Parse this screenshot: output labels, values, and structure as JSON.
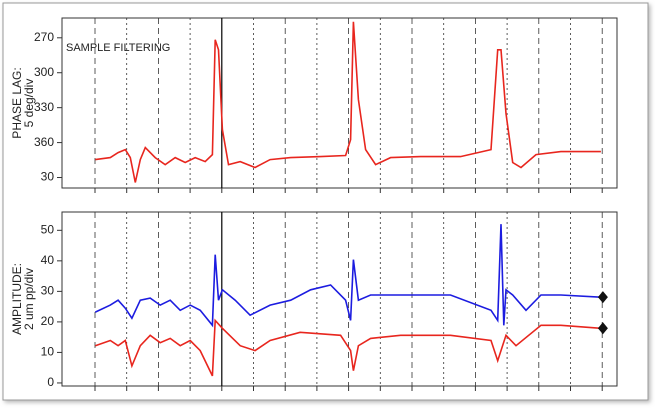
{
  "chart_data": [
    {
      "type": "line",
      "ylabel": [
        "PHASE LAG:",
        "5 deg/div"
      ],
      "annotation": "SAMPLE FILTERING",
      "xlim": [
        0,
        100
      ],
      "ylim": [
        253,
        399
      ],
      "y_inverted": true,
      "yticks": [
        270,
        300,
        330,
        360,
        {
          "value": 390,
          "label": "30"
        }
      ],
      "series": [
        {
          "color": "#e8261e",
          "x": [
            6.0,
            8.7,
            10.1,
            11.4,
            12.3,
            13.2,
            14.1,
            15.0,
            16.8,
            18.6,
            20.4,
            22.2,
            24.0,
            25.8,
            27.1,
            27.6,
            28.2,
            28.9,
            30.0,
            32.1,
            34.8,
            37.5,
            41.2,
            46.6,
            51.1,
            52.0,
            52.5,
            53.4,
            54.7,
            56.5,
            59.2,
            64.6,
            71.8,
            77.3,
            78.5,
            79.1,
            80.0,
            81.2,
            82.7,
            85.4,
            89.9,
            97.1
          ],
          "values": [
            374.6,
            372.9,
            368.6,
            366,
            372.9,
            394.3,
            374.6,
            364.3,
            372.9,
            378.9,
            372.9,
            377.1,
            372.9,
            376.3,
            370.3,
            271.7,
            280.3,
            348.9,
            378.9,
            376.3,
            381.4,
            374.6,
            372.9,
            372,
            371.1,
            357.4,
            256.3,
            323.1,
            366,
            378.9,
            372.9,
            372,
            372,
            366,
            280.3,
            280.3,
            335,
            377.1,
            381.4,
            370.3,
            367.7,
            367.7
          ]
        }
      ]
    },
    {
      "type": "line",
      "ylabel": [
        "AMPLITUDE:",
        "2 um pp/div"
      ],
      "xlim": [
        0,
        100
      ],
      "ylim": [
        -1,
        56
      ],
      "yticks": [
        0,
        10,
        20,
        30,
        40,
        50
      ],
      "series": [
        {
          "color": "#1c1ce0",
          "end_marker": "diamond",
          "x": [
            6.0,
            8.7,
            10.1,
            11.4,
            12.6,
            14.1,
            15.9,
            17.7,
            19.5,
            21.3,
            23.1,
            24.9,
            27.1,
            27.6,
            28.2,
            28.9,
            31.2,
            33.9,
            37.5,
            41.2,
            44.8,
            48.4,
            51.1,
            52.0,
            52.5,
            53.4,
            55.6,
            61.0,
            70.0,
            77.3,
            78.5,
            79.1,
            79.6,
            80.0,
            81.2,
            83.6,
            86.3,
            89.9,
            97.1
          ],
          "values": [
            23.2,
            25.5,
            27.1,
            24.5,
            21.2,
            27.1,
            27.8,
            25.5,
            27.1,
            23.8,
            25.5,
            23.8,
            18.9,
            42.0,
            27.1,
            30.5,
            27.1,
            22.2,
            25.5,
            27.1,
            30.5,
            32.1,
            27.1,
            20.5,
            40.4,
            27.1,
            28.8,
            28.8,
            28.8,
            23.8,
            20.5,
            52.0,
            18.9,
            30.5,
            28.8,
            23.8,
            28.8,
            28.8,
            28.1
          ]
        },
        {
          "color": "#e8261e",
          "end_marker": "diamond",
          "x": [
            6.0,
            8.7,
            10.1,
            11.4,
            12.6,
            14.1,
            15.9,
            17.7,
            19.5,
            21.3,
            23.1,
            24.9,
            27.1,
            27.6,
            28.9,
            32.1,
            34.8,
            37.5,
            42.9,
            50.2,
            52.0,
            52.5,
            53.4,
            55.6,
            61.0,
            70.0,
            77.3,
            78.5,
            80.0,
            81.8,
            86.3,
            89.9,
            97.1
          ],
          "values": [
            12.2,
            13.9,
            12.2,
            13.9,
            5.6,
            12.2,
            15.6,
            13.2,
            14.6,
            12.2,
            13.9,
            10.6,
            2.3,
            20.5,
            17.9,
            12.2,
            10.6,
            13.9,
            16.6,
            15.6,
            10.6,
            4.0,
            12.2,
            14.6,
            15.6,
            15.6,
            13.9,
            7.3,
            15.6,
            12.2,
            18.9,
            18.9,
            17.9
          ]
        }
      ]
    }
  ]
}
